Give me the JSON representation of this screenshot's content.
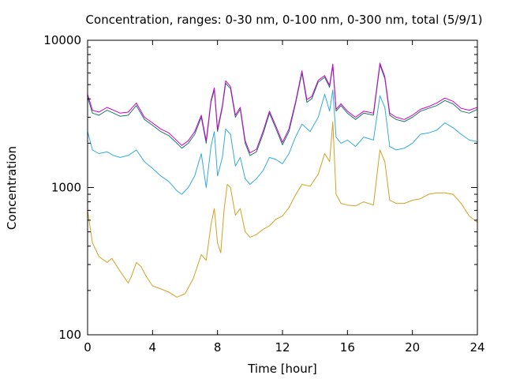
{
  "chart_data": {
    "type": "line",
    "title": "Concentration, ranges: 0-30 nm, 0-100 nm, 0-300 nm, total (5/9/1)",
    "xlabel": "Time [hour]",
    "ylabel": "Concentration",
    "xlim": [
      0,
      24
    ],
    "ylim": [
      100,
      10000
    ],
    "yscale": "log",
    "x_ticks": [
      0,
      4,
      8,
      12,
      16,
      20,
      24
    ],
    "x_tick_labels": [
      "0",
      "4",
      "8",
      "12",
      "16",
      "20",
      "24"
    ],
    "y_ticks": [
      100,
      1000,
      10000
    ],
    "y_tick_labels": [
      "100",
      "1000",
      "10000"
    ],
    "grid": false,
    "legend": "none",
    "colors": [
      "#d4a020",
      "#33aadd",
      "#1a7a6a",
      "#cc00cc"
    ],
    "series": [
      {
        "color": "#d4a020",
        "points": [
          [
            0,
            700
          ],
          [
            0.3,
            420
          ],
          [
            0.7,
            340
          ],
          [
            1.2,
            310
          ],
          [
            1.5,
            330
          ],
          [
            2,
            270
          ],
          [
            2.5,
            225
          ],
          [
            2.7,
            250
          ],
          [
            3,
            310
          ],
          [
            3.3,
            290
          ],
          [
            3.6,
            250
          ],
          [
            4,
            215
          ],
          [
            4.5,
            205
          ],
          [
            5,
            195
          ],
          [
            5.5,
            180
          ],
          [
            6,
            190
          ],
          [
            6.5,
            240
          ],
          [
            7,
            350
          ],
          [
            7.3,
            320
          ],
          [
            7.6,
            560
          ],
          [
            7.8,
            720
          ],
          [
            8.0,
            420
          ],
          [
            8.2,
            360
          ],
          [
            8.4,
            700
          ],
          [
            8.6,
            1050
          ],
          [
            8.8,
            1000
          ],
          [
            9.1,
            650
          ],
          [
            9.4,
            720
          ],
          [
            9.7,
            500
          ],
          [
            10,
            460
          ],
          [
            10.4,
            480
          ],
          [
            10.8,
            520
          ],
          [
            11.2,
            550
          ],
          [
            11.6,
            610
          ],
          [
            12,
            640
          ],
          [
            12.4,
            730
          ],
          [
            12.8,
            890
          ],
          [
            13.2,
            1050
          ],
          [
            13.7,
            1020
          ],
          [
            14.2,
            1230
          ],
          [
            14.6,
            1700
          ],
          [
            14.9,
            1500
          ],
          [
            15.1,
            2800
          ],
          [
            15.3,
            900
          ],
          [
            15.6,
            780
          ],
          [
            16,
            760
          ],
          [
            16.5,
            750
          ],
          [
            17,
            800
          ],
          [
            17.6,
            760
          ],
          [
            18,
            1800
          ],
          [
            18.3,
            1500
          ],
          [
            18.6,
            820
          ],
          [
            19,
            780
          ],
          [
            19.5,
            780
          ],
          [
            20,
            820
          ],
          [
            20.5,
            840
          ],
          [
            21,
            900
          ],
          [
            21.5,
            920
          ],
          [
            22,
            920
          ],
          [
            22.5,
            900
          ],
          [
            23,
            780
          ],
          [
            23.5,
            640
          ],
          [
            24,
            580
          ]
        ]
      },
      {
        "color": "#33aadd",
        "points": [
          [
            0,
            2400
          ],
          [
            0.3,
            1800
          ],
          [
            0.7,
            1700
          ],
          [
            1.2,
            1750
          ],
          [
            1.6,
            1650
          ],
          [
            2,
            1600
          ],
          [
            2.5,
            1650
          ],
          [
            3,
            1800
          ],
          [
            3.5,
            1500
          ],
          [
            4,
            1350
          ],
          [
            4.5,
            1200
          ],
          [
            5,
            1100
          ],
          [
            5.5,
            950
          ],
          [
            5.8,
            900
          ],
          [
            6.2,
            1000
          ],
          [
            6.6,
            1200
          ],
          [
            7,
            1700
          ],
          [
            7.3,
            1000
          ],
          [
            7.6,
            1900
          ],
          [
            7.8,
            2400
          ],
          [
            8.0,
            1200
          ],
          [
            8.3,
            1600
          ],
          [
            8.5,
            2500
          ],
          [
            8.8,
            2300
          ],
          [
            9.1,
            1400
          ],
          [
            9.4,
            1600
          ],
          [
            9.7,
            1150
          ],
          [
            10,
            1050
          ],
          [
            10.4,
            1150
          ],
          [
            10.8,
            1300
          ],
          [
            11.2,
            1600
          ],
          [
            11.6,
            1550
          ],
          [
            12,
            1450
          ],
          [
            12.4,
            1700
          ],
          [
            12.8,
            2200
          ],
          [
            13.2,
            2700
          ],
          [
            13.7,
            2400
          ],
          [
            14.2,
            3000
          ],
          [
            14.6,
            4300
          ],
          [
            14.9,
            3300
          ],
          [
            15.1,
            4600
          ],
          [
            15.3,
            2200
          ],
          [
            15.6,
            2000
          ],
          [
            16,
            2100
          ],
          [
            16.5,
            1900
          ],
          [
            17,
            2200
          ],
          [
            17.6,
            2100
          ],
          [
            18,
            4200
          ],
          [
            18.3,
            3500
          ],
          [
            18.6,
            1900
          ],
          [
            19,
            1800
          ],
          [
            19.5,
            1850
          ],
          [
            20,
            2000
          ],
          [
            20.5,
            2300
          ],
          [
            21,
            2350
          ],
          [
            21.5,
            2450
          ],
          [
            22,
            2750
          ],
          [
            22.5,
            2550
          ],
          [
            23,
            2300
          ],
          [
            23.5,
            2100
          ],
          [
            24,
            2050
          ]
        ]
      },
      {
        "color": "#1a7a6a",
        "points": [
          [
            0,
            4100
          ],
          [
            0.3,
            3200
          ],
          [
            0.7,
            3100
          ],
          [
            1.2,
            3350
          ],
          [
            1.6,
            3200
          ],
          [
            2,
            3050
          ],
          [
            2.5,
            3100
          ],
          [
            3,
            3600
          ],
          [
            3.5,
            2900
          ],
          [
            4,
            2650
          ],
          [
            4.5,
            2400
          ],
          [
            5,
            2250
          ],
          [
            5.5,
            2000
          ],
          [
            5.8,
            1850
          ],
          [
            6.2,
            2000
          ],
          [
            6.6,
            2300
          ],
          [
            7,
            3000
          ],
          [
            7.3,
            2000
          ],
          [
            7.6,
            3800
          ],
          [
            7.8,
            4600
          ],
          [
            8.0,
            2400
          ],
          [
            8.3,
            3500
          ],
          [
            8.5,
            5100
          ],
          [
            8.8,
            4700
          ],
          [
            9.1,
            3000
          ],
          [
            9.4,
            3400
          ],
          [
            9.7,
            2000
          ],
          [
            10,
            1650
          ],
          [
            10.4,
            1750
          ],
          [
            10.8,
            2300
          ],
          [
            11.2,
            3200
          ],
          [
            11.6,
            2500
          ],
          [
            12,
            1950
          ],
          [
            12.4,
            2400
          ],
          [
            12.8,
            3700
          ],
          [
            13.2,
            6000
          ],
          [
            13.5,
            3800
          ],
          [
            13.8,
            4000
          ],
          [
            14.2,
            5200
          ],
          [
            14.6,
            5600
          ],
          [
            14.9,
            4800
          ],
          [
            15.1,
            6700
          ],
          [
            15.3,
            3300
          ],
          [
            15.6,
            3600
          ],
          [
            16,
            3200
          ],
          [
            16.5,
            2900
          ],
          [
            17,
            3200
          ],
          [
            17.6,
            3100
          ],
          [
            18,
            6800
          ],
          [
            18.3,
            5500
          ],
          [
            18.6,
            3100
          ],
          [
            19,
            2900
          ],
          [
            19.5,
            2800
          ],
          [
            20,
            3000
          ],
          [
            20.5,
            3300
          ],
          [
            21,
            3450
          ],
          [
            21.5,
            3600
          ],
          [
            22,
            3900
          ],
          [
            22.5,
            3700
          ],
          [
            23,
            3300
          ],
          [
            23.5,
            3200
          ],
          [
            24,
            3400
          ]
        ]
      },
      {
        "color": "#cc00cc",
        "points": [
          [
            0,
            4300
          ],
          [
            0.3,
            3350
          ],
          [
            0.7,
            3250
          ],
          [
            1.2,
            3500
          ],
          [
            1.6,
            3350
          ],
          [
            2,
            3200
          ],
          [
            2.5,
            3250
          ],
          [
            3,
            3750
          ],
          [
            3.5,
            3000
          ],
          [
            4,
            2750
          ],
          [
            4.5,
            2500
          ],
          [
            5,
            2350
          ],
          [
            5.5,
            2080
          ],
          [
            5.8,
            1930
          ],
          [
            6.2,
            2080
          ],
          [
            6.6,
            2400
          ],
          [
            7,
            3100
          ],
          [
            7.3,
            2080
          ],
          [
            7.6,
            3900
          ],
          [
            7.8,
            4750
          ],
          [
            8.0,
            2480
          ],
          [
            8.3,
            3600
          ],
          [
            8.5,
            5300
          ],
          [
            8.8,
            4850
          ],
          [
            9.1,
            3100
          ],
          [
            9.4,
            3500
          ],
          [
            9.7,
            2080
          ],
          [
            10,
            1720
          ],
          [
            10.4,
            1820
          ],
          [
            10.8,
            2400
          ],
          [
            11.2,
            3300
          ],
          [
            11.6,
            2600
          ],
          [
            12,
            2030
          ],
          [
            12.4,
            2500
          ],
          [
            12.8,
            3800
          ],
          [
            13.2,
            6200
          ],
          [
            13.5,
            3950
          ],
          [
            13.8,
            4150
          ],
          [
            14.2,
            5350
          ],
          [
            14.6,
            5750
          ],
          [
            14.9,
            4950
          ],
          [
            15.1,
            6900
          ],
          [
            15.3,
            3400
          ],
          [
            15.6,
            3700
          ],
          [
            16,
            3300
          ],
          [
            16.5,
            3000
          ],
          [
            17,
            3300
          ],
          [
            17.6,
            3200
          ],
          [
            18,
            7000
          ],
          [
            18.3,
            5650
          ],
          [
            18.6,
            3200
          ],
          [
            19,
            3000
          ],
          [
            19.5,
            2900
          ],
          [
            20,
            3100
          ],
          [
            20.5,
            3400
          ],
          [
            21,
            3550
          ],
          [
            21.5,
            3750
          ],
          [
            22,
            4050
          ],
          [
            22.5,
            3850
          ],
          [
            23,
            3450
          ],
          [
            23.5,
            3350
          ],
          [
            24,
            3500
          ]
        ]
      }
    ]
  }
}
